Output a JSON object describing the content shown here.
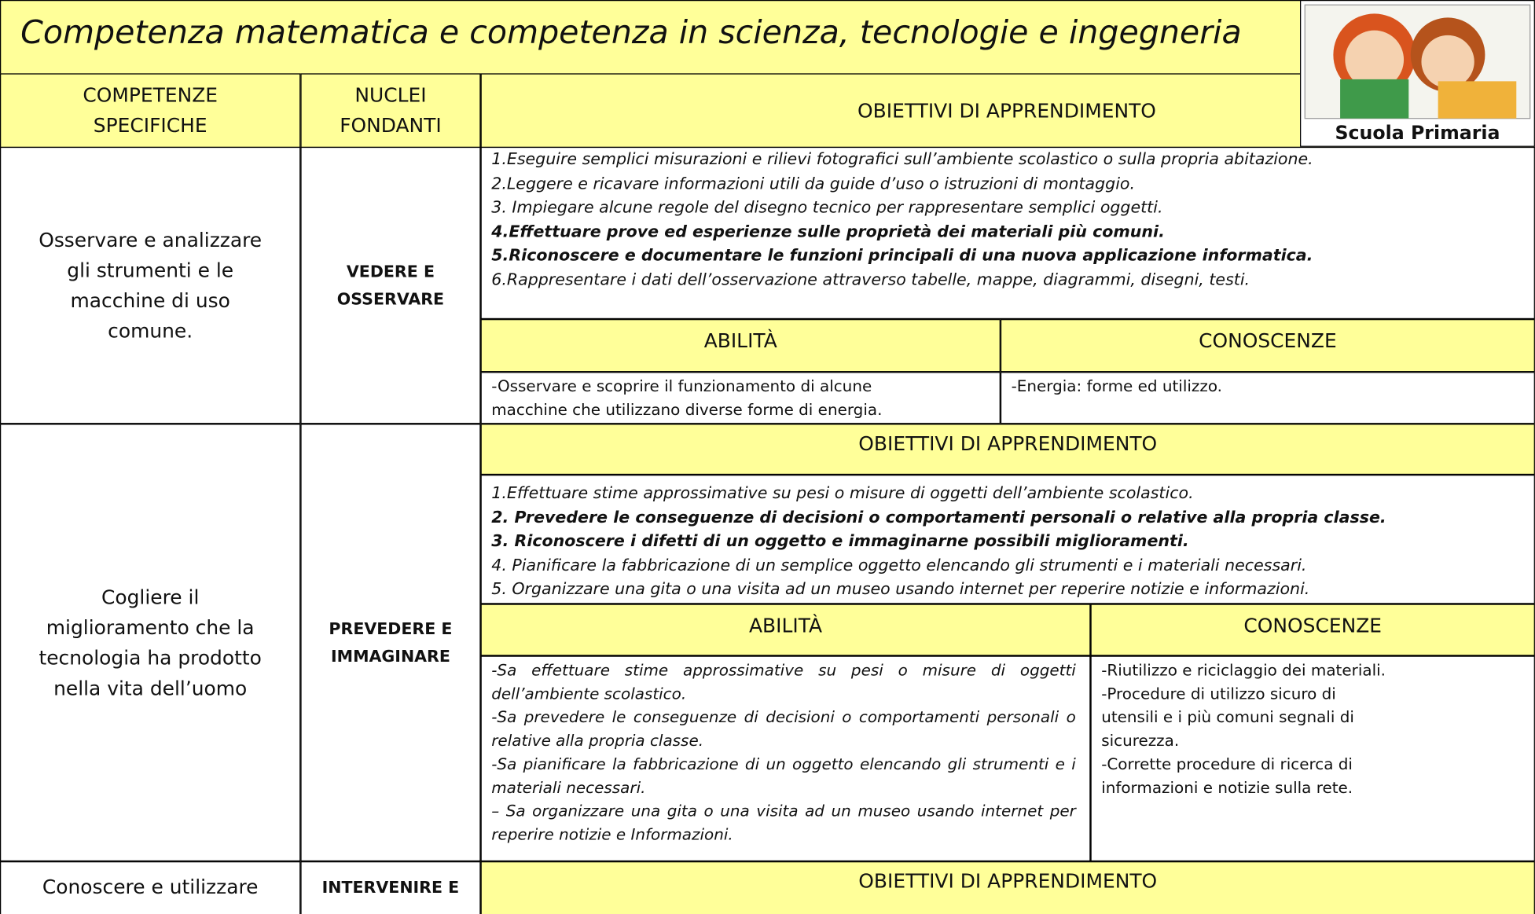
{
  "header": {
    "title": "Competenza matematica e competenza in scienza, tecnologie e ingegneria",
    "badge": "Scuola Primaria"
  },
  "table": {
    "headers": [
      "COMPETENZE SPECIFICHE",
      "NUCLEI FONDANTI",
      "OBIETTIVI DI APPRENDIMENTO"
    ],
    "sections": [
      {
        "competenza": "Osservare e analizzare gli strumenti e le macchine di uso comune.",
        "nucleo": "VEDERE E OSSERVARE",
        "obiettivi": [
          {
            "text": "1.Eseguire semplici misurazioni e rilievi fotografici sull’ambiente scolastico o sulla propria abitazione.",
            "bold": false
          },
          {
            "text": "2.Leggere e ricavare informazioni utili da guide d’uso o istruzioni di montaggio.",
            "bold": false
          },
          {
            "text": "3. Impiegare alcune regole del disegno tecnico per rappresentare semplici oggetti.",
            "bold": false
          },
          {
            "text": "4.Effettuare prove ed esperienze sulle proprietà dei materiali più comuni.",
            "bold": true
          },
          {
            "text": "5.Riconoscere e documentare le funzioni principali di una nuova applicazione informatica.",
            "bold": true
          },
          {
            "text": "6.Rappresentare i dati dell’osservazione attraverso tabelle, mappe, diagrammi, disegni, testi.",
            "bold": false
          }
        ],
        "abilita_heading": "ABILITÀ",
        "conoscenze_heading": "CONOSCENZE",
        "abilita_italic": false,
        "abilita": [
          "-Osservare e scoprire il funzionamento di alcune macchine che utilizzano diverse forme di energia."
        ],
        "conoscenze": [
          "-Energia: forme ed utilizzo."
        ]
      },
      {
        "competenza": "Cogliere il miglioramento che la tecnologia ha prodotto nella vita dell’uomo",
        "nucleo": "PREVEDERE E IMMAGINARE",
        "obiettivi_heading": "OBIETTIVI DI APPRENDIMENTO",
        "obiettivi": [
          {
            "text": "1.Effettuare stime approssimative su pesi o misure di oggetti dell’ambiente scolastico.",
            "bold": false
          },
          {
            "text": "2. Prevedere le conseguenze di decisioni o comportamenti personali o relative alla propria classe.",
            "bold": true
          },
          {
            "text": "3. Riconoscere i difetti di un oggetto e immaginarne possibili miglioramenti.",
            "bold": true
          },
          {
            "text": "4. Pianificare la fabbricazione di un semplice oggetto elencando gli strumenti e i materiali necessari.",
            "bold": false
          },
          {
            "text": "5. Organizzare una gita o una visita ad un museo usando internet per reperire notizie e informazioni.",
            "bold": false
          }
        ],
        "abilita_heading": "ABILITÀ",
        "conoscenze_heading": "CONOSCENZE",
        "abilita_italic": true,
        "abilita": [
          "-Sa effettuare stime approssimative su pesi o misure di oggetti dell’ambiente scolastico.",
          "-Sa prevedere le conseguenze di decisioni o comportamenti personali o relative alla propria classe.",
          "-Sa pianificare la fabbricazione di un oggetto elencando gli strumenti e i materiali necessari.",
          "– Sa organizzare una gita o una visita ad un museo usando internet per reperire notizie e Informazioni."
        ],
        "conoscenze": [
          "-Riutilizzo e riciclaggio dei materiali.",
          "-Procedure di utilizzo sicuro di utensili e i più comuni segnali di sicurezza.",
          "-Corrette procedure di ricerca di informazioni e notizie sulla rete."
        ]
      },
      {
        "competenza": "Conoscere e utilizzare",
        "nucleo": "INTERVENIRE E",
        "obiettivi_heading": "OBIETTIVI DI APPRENDIMENTO"
      }
    ]
  }
}
